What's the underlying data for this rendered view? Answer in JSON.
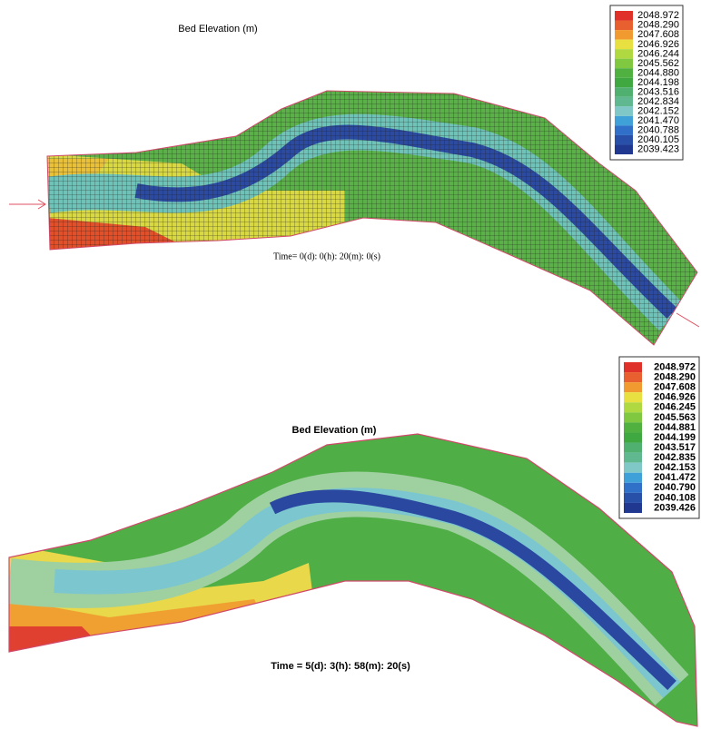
{
  "panels": [
    {
      "title": "Bed Elevation (m)",
      "time": "Time= 0(d): 0(h): 20(m): 0(s)",
      "legend": [
        "2048.972",
        "2048.290",
        "2047.608",
        "2046.926",
        "2046.244",
        "2045.562",
        "2044.880",
        "2044.198",
        "2043.516",
        "2042.834",
        "2042.152",
        "2041.470",
        "2040.788",
        "2040.105",
        "2039.423"
      ]
    },
    {
      "title": "Bed Elevation (m)",
      "time": "Time = 5(d): 3(h): 58(m): 20(s)",
      "legend": [
        "2048.972",
        "2048.290",
        "2047.608",
        "2046.926",
        "2046.245",
        "2045.563",
        "2044.881",
        "2044.199",
        "2043.517",
        "2042.835",
        "2042.153",
        "2041.472",
        "2040.790",
        "2040.108",
        "2039.426"
      ]
    }
  ]
}
